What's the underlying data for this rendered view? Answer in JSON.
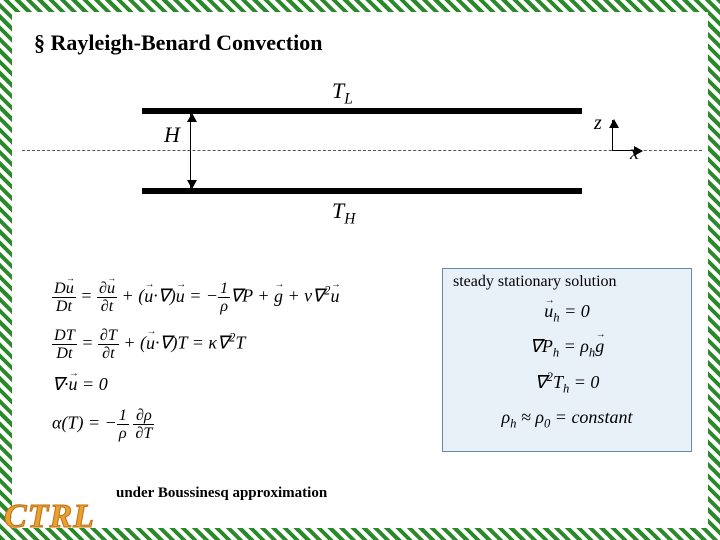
{
  "title": "§ Rayleigh-Benard Convection",
  "diagram": {
    "T_top": "T",
    "T_top_sub": "L",
    "T_bot": "T",
    "T_bot_sub": "H",
    "H": "H",
    "z": "z",
    "x": "x",
    "bar_color": "#000000",
    "dash_color": "#555555"
  },
  "equations_left": {
    "line1_html": "<span class='frac'><span class='num'>D<span class='vec'>u</span></span><span class='den'>Dt</span></span> = <span class='frac'><span class='num'>∂<span class='vec'>u</span></span><span class='den'>∂t</span></span> + (<span class='vec'>u</span>·∇)<span class='vec'>u</span> = −<span class='frac'><span class='num'>1</span><span class='den'>ρ</span></span>∇P + <span class='vec'>g</span> + ν∇<span class='sup'>2</span><span class='vec'>u</span>",
    "line2_html": "<span class='frac'><span class='num'>DT</span><span class='den'>Dt</span></span> = <span class='frac'><span class='num'>∂T</span><span class='den'>∂t</span></span> + (<span class='vec'>u</span>·∇)T = κ∇<span class='sup'>2</span>T",
    "line3_html": "∇·<span class='vec'>u</span> = 0",
    "line4_html": "α(T) = −<span class='frac'><span class='num'>1</span><span class='den'>ρ</span></span> <span class='frac'><span class='num'>∂ρ</span><span class='den'>∂T</span></span>"
  },
  "solution_box": {
    "title": "steady stationary solution",
    "bg_color": "#e8f0f8",
    "border_color": "#6688aa",
    "eq1_html": "<span class='vec'>u</span><span class='sub'>h</span> = 0",
    "eq2_html": "∇P<span class='sub'>h</span> = ρ<span class='sub'>h</span><span class='vec'>g</span>",
    "eq3_html": "∇<span class='sup'>2</span>T<span class='sub'>h</span> = 0",
    "eq4_html": "ρ<span class='sub'>h</span> ≈ ρ<span class='sub'>0</span> = constant"
  },
  "footnote": "under Boussinesq approximation",
  "logo": "CTRL",
  "border_color": "#2a8a2a",
  "background_color": "#ffffff"
}
